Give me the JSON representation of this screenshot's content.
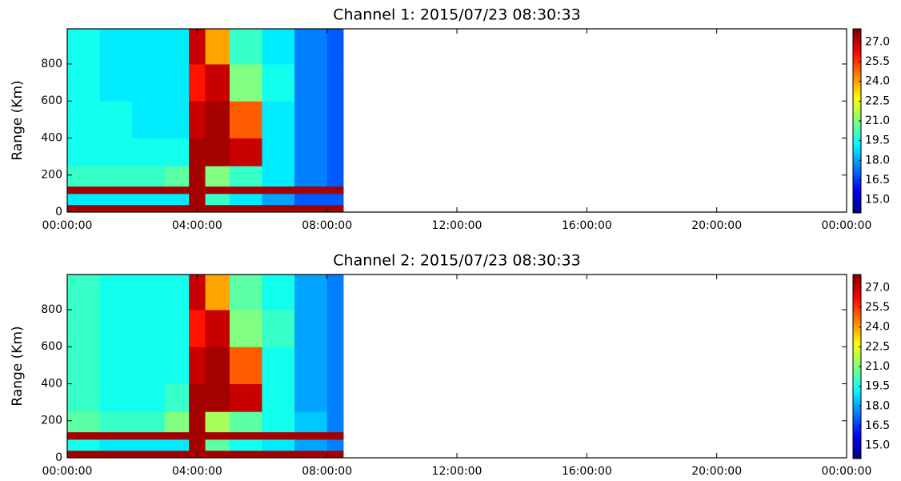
{
  "chart_data": [
    {
      "type": "heatmap",
      "title": "Channel 1: 2015/07/23 08:30:33",
      "y_label": "Range (Km)",
      "xlim": [
        0,
        24
      ],
      "xticks": [
        {
          "value": 0,
          "label": "00:00:00"
        },
        {
          "value": 4,
          "label": "04:00:00"
        },
        {
          "value": 8,
          "label": "08:00:00"
        },
        {
          "value": 12,
          "label": "12:00:00"
        },
        {
          "value": 16,
          "label": "16:00:00"
        },
        {
          "value": 20,
          "label": "20:00:00"
        },
        {
          "value": 24,
          "label": "00:00:00"
        }
      ],
      "ylim": [
        0,
        990
      ],
      "yticks": [
        0,
        200,
        400,
        600,
        800
      ],
      "x_bins": [
        0,
        1,
        2,
        3,
        3.75,
        4.25,
        5,
        6,
        7,
        8,
        8.5
      ],
      "y_bins": [
        0,
        40,
        100,
        140,
        250,
        400,
        600,
        800,
        990
      ],
      "values": [
        [
          27.5,
          27.5,
          27.5,
          27.5,
          27.5,
          27.5,
          27.5,
          27.5,
          27.5,
          27.5
        ],
        [
          19,
          19,
          19,
          19,
          27.5,
          20,
          19,
          18,
          17,
          17
        ],
        [
          27.5,
          27.5,
          27.5,
          27.5,
          27.5,
          27.5,
          27.5,
          27.5,
          27.5,
          27.5
        ],
        [
          20,
          20,
          20,
          20.5,
          27.5,
          21,
          20,
          19,
          17.5,
          17
        ],
        [
          19.5,
          19.5,
          19.5,
          19.5,
          27.5,
          27.5,
          27,
          19,
          17.5,
          17
        ],
        [
          19.5,
          19.5,
          19,
          19,
          27,
          27.5,
          25,
          19,
          17.5,
          17
        ],
        [
          19.5,
          19,
          19,
          19,
          26,
          27,
          21,
          19.5,
          17.5,
          17
        ],
        [
          19.5,
          19,
          19,
          19,
          27,
          24,
          20,
          19,
          17.5,
          17
        ]
      ],
      "clim": [
        14,
        28
      ],
      "cticks": [
        {
          "value": 15,
          "label": "15.0"
        },
        {
          "value": 16.5,
          "label": "16.5"
        },
        {
          "value": 18,
          "label": "18.0"
        },
        {
          "value": 19.5,
          "label": "19.5"
        },
        {
          "value": 21,
          "label": "21.0"
        },
        {
          "value": 22.5,
          "label": "22.5"
        },
        {
          "value": 24,
          "label": "24.0"
        },
        {
          "value": 25.5,
          "label": "25.5"
        },
        {
          "value": 27,
          "label": "27.0"
        }
      ],
      "colormap": "jet"
    },
    {
      "type": "heatmap",
      "title": "Channel 2: 2015/07/23 08:30:33",
      "y_label": "Range (Km)",
      "xlim": [
        0,
        24
      ],
      "xticks": [
        {
          "value": 0,
          "label": "00:00:00"
        },
        {
          "value": 4,
          "label": "04:00:00"
        },
        {
          "value": 8,
          "label": "08:00:00"
        },
        {
          "value": 12,
          "label": "12:00:00"
        },
        {
          "value": 16,
          "label": "16:00:00"
        },
        {
          "value": 20,
          "label": "20:00:00"
        },
        {
          "value": 24,
          "label": "00:00:00"
        }
      ],
      "ylim": [
        0,
        990
      ],
      "yticks": [
        0,
        200,
        400,
        600,
        800
      ],
      "x_bins": [
        0,
        1,
        2,
        3,
        3.75,
        4.25,
        5,
        6,
        7,
        8,
        8.5
      ],
      "y_bins": [
        0,
        40,
        100,
        140,
        250,
        400,
        600,
        800,
        990
      ],
      "values": [
        [
          27.5,
          27.5,
          27.5,
          27.5,
          27.5,
          27.5,
          27.5,
          27.5,
          27.5,
          27.5
        ],
        [
          19.5,
          19,
          19,
          19,
          27.5,
          20.5,
          19.5,
          19,
          18,
          17.5
        ],
        [
          27.5,
          27.5,
          27.5,
          27.5,
          27.5,
          27.5,
          27.5,
          27.5,
          27.5,
          27.5
        ],
        [
          20.5,
          20,
          20,
          21,
          27.5,
          21.5,
          20.5,
          19.5,
          18.5,
          17.5
        ],
        [
          20,
          19.5,
          19.5,
          20,
          27.5,
          27.5,
          27,
          19.5,
          18,
          17.5
        ],
        [
          20,
          19.5,
          19.5,
          19.5,
          27,
          27.5,
          25,
          19.5,
          18,
          17.5
        ],
        [
          20,
          19.5,
          19.5,
          19.5,
          26,
          27,
          21,
          20,
          18,
          17.5
        ],
        [
          20,
          19.5,
          19.5,
          19.5,
          27,
          24,
          20.5,
          19.5,
          18,
          17.5
        ]
      ],
      "clim": [
        14,
        28
      ],
      "cticks": [
        {
          "value": 15,
          "label": "15.0"
        },
        {
          "value": 16.5,
          "label": "16.5"
        },
        {
          "value": 18,
          "label": "18.0"
        },
        {
          "value": 19.5,
          "label": "19.5"
        },
        {
          "value": 21,
          "label": "21.0"
        },
        {
          "value": 22.5,
          "label": "22.5"
        },
        {
          "value": 24,
          "label": "24.0"
        },
        {
          "value": 25.5,
          "label": "25.5"
        },
        {
          "value": 27,
          "label": "27.0"
        }
      ],
      "colormap": "jet"
    }
  ]
}
